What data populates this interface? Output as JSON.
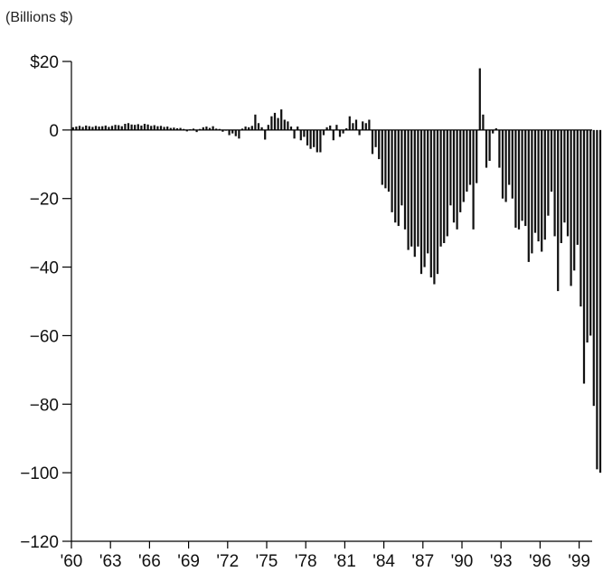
{
  "chart_data": {
    "type": "bar",
    "title": "",
    "xlabel": "",
    "ylabel": "(Billions $)",
    "ylim": [
      -120,
      20
    ],
    "y_ticks": [
      20,
      0,
      -20,
      -40,
      -60,
      -80,
      -100,
      -120
    ],
    "y_tick_labels": [
      "$20",
      "0",
      "−20",
      "−40",
      "−60",
      "−80",
      "−100",
      "−120"
    ],
    "x_range": [
      1960,
      2000
    ],
    "x_ticks": [
      1960,
      1963,
      1966,
      1969,
      1972,
      1975,
      1978,
      1981,
      1984,
      1987,
      1990,
      1993,
      1996,
      1999
    ],
    "x_tick_labels": [
      "'60",
      "'63",
      "'66",
      "'69",
      "'72",
      "'75",
      "'78",
      "'81",
      "'84",
      "'87",
      "'90",
      "'93",
      "'96",
      "'99"
    ],
    "frequency": "quarterly",
    "grid": false,
    "values": [
      0.8,
      1.0,
      1.2,
      0.9,
      1.3,
      1.1,
      0.9,
      1.2,
      1.0,
      1.1,
      1.3,
      0.9,
      1.2,
      1.5,
      1.4,
      1.1,
      1.8,
      2.0,
      1.6,
      1.5,
      1.7,
      1.3,
      1.8,
      1.6,
      1.2,
      1.4,
      1.1,
      1.2,
      0.9,
      1.0,
      0.6,
      0.7,
      0.5,
      0.6,
      0.3,
      -0.4,
      0.2,
      0.4,
      -0.6,
      0.3,
      0.8,
      1.0,
      0.6,
      1.1,
      0.4,
      0.3,
      -0.5,
      -0.2,
      -1.5,
      -1.0,
      -1.8,
      -2.5,
      0.4,
      1.0,
      0.8,
      1.2,
      4.5,
      2.0,
      0.8,
      -2.8,
      1.5,
      4.0,
      5.0,
      3.5,
      6.0,
      3.0,
      2.5,
      1.0,
      -2.5,
      1.0,
      -3.0,
      -2.0,
      -4.5,
      -5.5,
      -5.0,
      -6.5,
      -6.5,
      -1.5,
      0.8,
      1.3,
      -3.0,
      1.5,
      -2.0,
      -1.0,
      0.5,
      4.0,
      2.0,
      3.0,
      -1.5,
      2.5,
      2.0,
      3.0,
      -7.0,
      -5.0,
      -8.5,
      -16.0,
      -17.0,
      -18.0,
      -24.0,
      -27.0,
      -28.0,
      -22.0,
      -29.0,
      -35.0,
      -34.0,
      -37.0,
      -34.0,
      -42.0,
      -40.0,
      -36.0,
      -43.0,
      -45.0,
      -42.0,
      -34.0,
      -33.0,
      -31.0,
      -22.0,
      -27.0,
      -29.0,
      -24.0,
      -21.0,
      -18.0,
      -16.0,
      -29.0,
      -15.5,
      18.0,
      4.5,
      -11.0,
      -9.0,
      -1.0,
      0.5,
      -11.0,
      -20.0,
      -21.0,
      -16.0,
      -20.0,
      -28.5,
      -29.0,
      -26.5,
      -28.0,
      -38.5,
      -36.0,
      -30.0,
      -32.5,
      -35.5,
      -32.0,
      -25.0,
      -18.0,
      -31.0,
      -47.0,
      -33.0,
      -27.0,
      -31.0,
      -45.5,
      -41.0,
      -33.5,
      -51.5,
      -74.0,
      -62.0,
      -60.0,
      -80.5,
      -99.0,
      -100.0
    ]
  }
}
